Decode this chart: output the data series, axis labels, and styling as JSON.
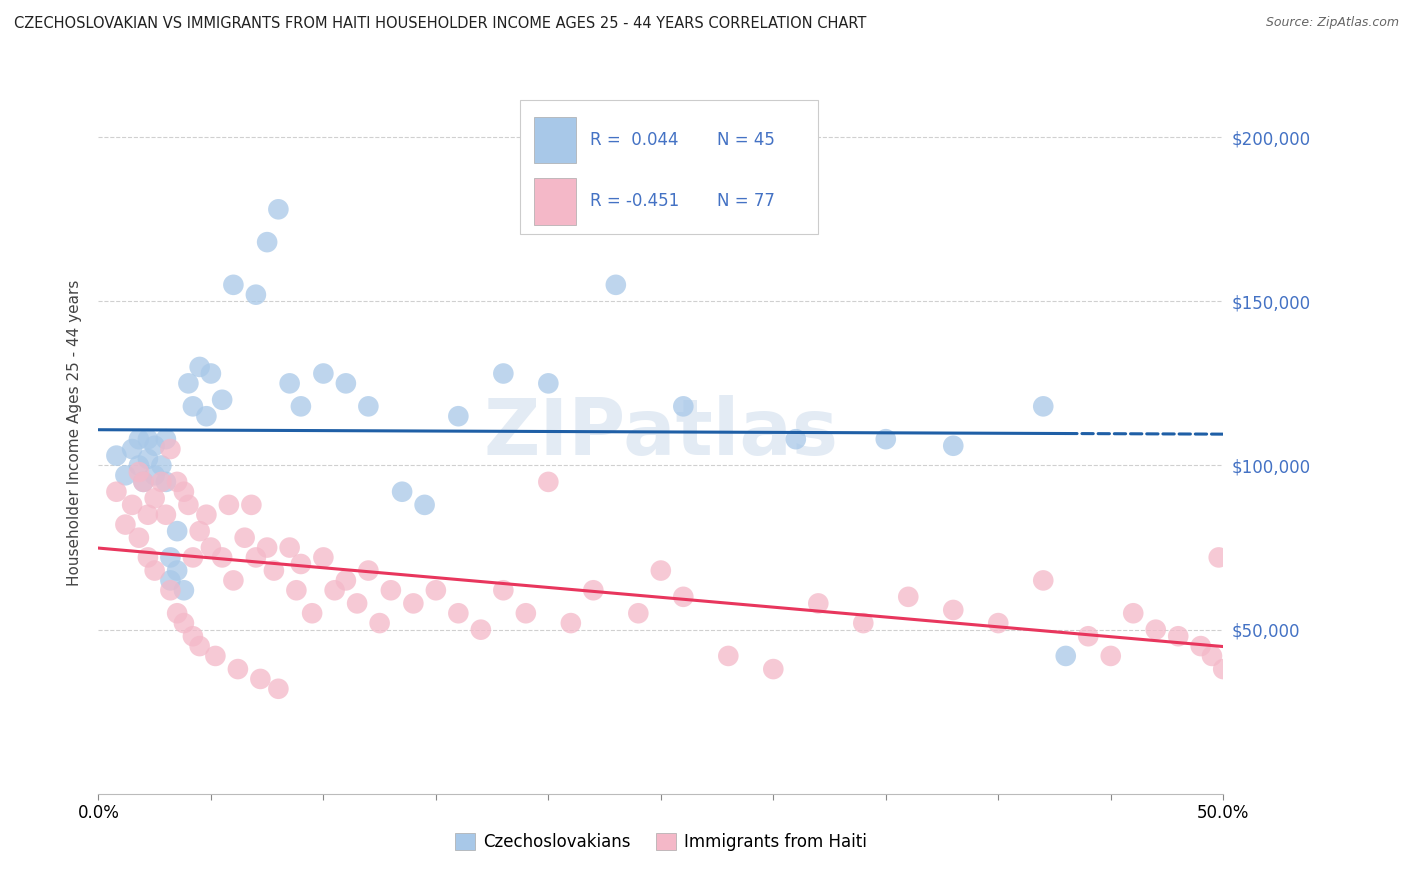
{
  "title": "CZECHOSLOVAKIAN VS IMMIGRANTS FROM HAITI HOUSEHOLDER INCOME AGES 25 - 44 YEARS CORRELATION CHART",
  "source": "Source: ZipAtlas.com",
  "ylabel": "Householder Income Ages 25 - 44 years",
  "xmin": 0.0,
  "xmax": 0.5,
  "ymin": 0,
  "ymax": 220000,
  "yticks": [
    0,
    50000,
    100000,
    150000,
    200000
  ],
  "xticks": [
    0.0,
    0.05,
    0.1,
    0.15,
    0.2,
    0.25,
    0.3,
    0.35,
    0.4,
    0.45,
    0.5
  ],
  "blue_color": "#a8c8e8",
  "pink_color": "#f4b8c8",
  "blue_line_color": "#1f5fa6",
  "pink_line_color": "#e8365d",
  "watermark": "ZIPatlas",
  "blue_x": [
    0.008,
    0.012,
    0.015,
    0.018,
    0.018,
    0.02,
    0.022,
    0.022,
    0.025,
    0.025,
    0.028,
    0.03,
    0.03,
    0.032,
    0.032,
    0.035,
    0.035,
    0.038,
    0.04,
    0.042,
    0.045,
    0.048,
    0.05,
    0.055,
    0.06,
    0.07,
    0.075,
    0.08,
    0.085,
    0.09,
    0.1,
    0.11,
    0.12,
    0.135,
    0.145,
    0.16,
    0.18,
    0.2,
    0.23,
    0.26,
    0.31,
    0.35,
    0.38,
    0.42,
    0.43
  ],
  "blue_y": [
    103000,
    97000,
    105000,
    108000,
    100000,
    95000,
    108000,
    102000,
    106000,
    97000,
    100000,
    108000,
    95000,
    72000,
    65000,
    80000,
    68000,
    62000,
    125000,
    118000,
    130000,
    115000,
    128000,
    120000,
    155000,
    152000,
    168000,
    178000,
    125000,
    118000,
    128000,
    125000,
    118000,
    92000,
    88000,
    115000,
    128000,
    125000,
    155000,
    118000,
    108000,
    108000,
    106000,
    118000,
    42000
  ],
  "pink_x": [
    0.008,
    0.012,
    0.015,
    0.018,
    0.018,
    0.02,
    0.022,
    0.022,
    0.025,
    0.025,
    0.028,
    0.03,
    0.032,
    0.032,
    0.035,
    0.035,
    0.038,
    0.038,
    0.04,
    0.042,
    0.042,
    0.045,
    0.045,
    0.048,
    0.05,
    0.052,
    0.055,
    0.058,
    0.06,
    0.062,
    0.065,
    0.068,
    0.07,
    0.072,
    0.075,
    0.078,
    0.08,
    0.085,
    0.088,
    0.09,
    0.095,
    0.1,
    0.105,
    0.11,
    0.115,
    0.12,
    0.125,
    0.13,
    0.14,
    0.15,
    0.16,
    0.17,
    0.18,
    0.19,
    0.2,
    0.21,
    0.22,
    0.24,
    0.25,
    0.26,
    0.28,
    0.3,
    0.32,
    0.34,
    0.36,
    0.38,
    0.4,
    0.42,
    0.44,
    0.45,
    0.46,
    0.47,
    0.48,
    0.49,
    0.495,
    0.498,
    0.5
  ],
  "pink_y": [
    92000,
    82000,
    88000,
    98000,
    78000,
    95000,
    85000,
    72000,
    90000,
    68000,
    95000,
    85000,
    105000,
    62000,
    95000,
    55000,
    92000,
    52000,
    88000,
    72000,
    48000,
    80000,
    45000,
    85000,
    75000,
    42000,
    72000,
    88000,
    65000,
    38000,
    78000,
    88000,
    72000,
    35000,
    75000,
    68000,
    32000,
    75000,
    62000,
    70000,
    55000,
    72000,
    62000,
    65000,
    58000,
    68000,
    52000,
    62000,
    58000,
    62000,
    55000,
    50000,
    62000,
    55000,
    95000,
    52000,
    62000,
    55000,
    68000,
    60000,
    42000,
    38000,
    58000,
    52000,
    60000,
    56000,
    52000,
    65000,
    48000,
    42000,
    55000,
    50000,
    48000,
    45000,
    42000,
    72000,
    38000
  ]
}
